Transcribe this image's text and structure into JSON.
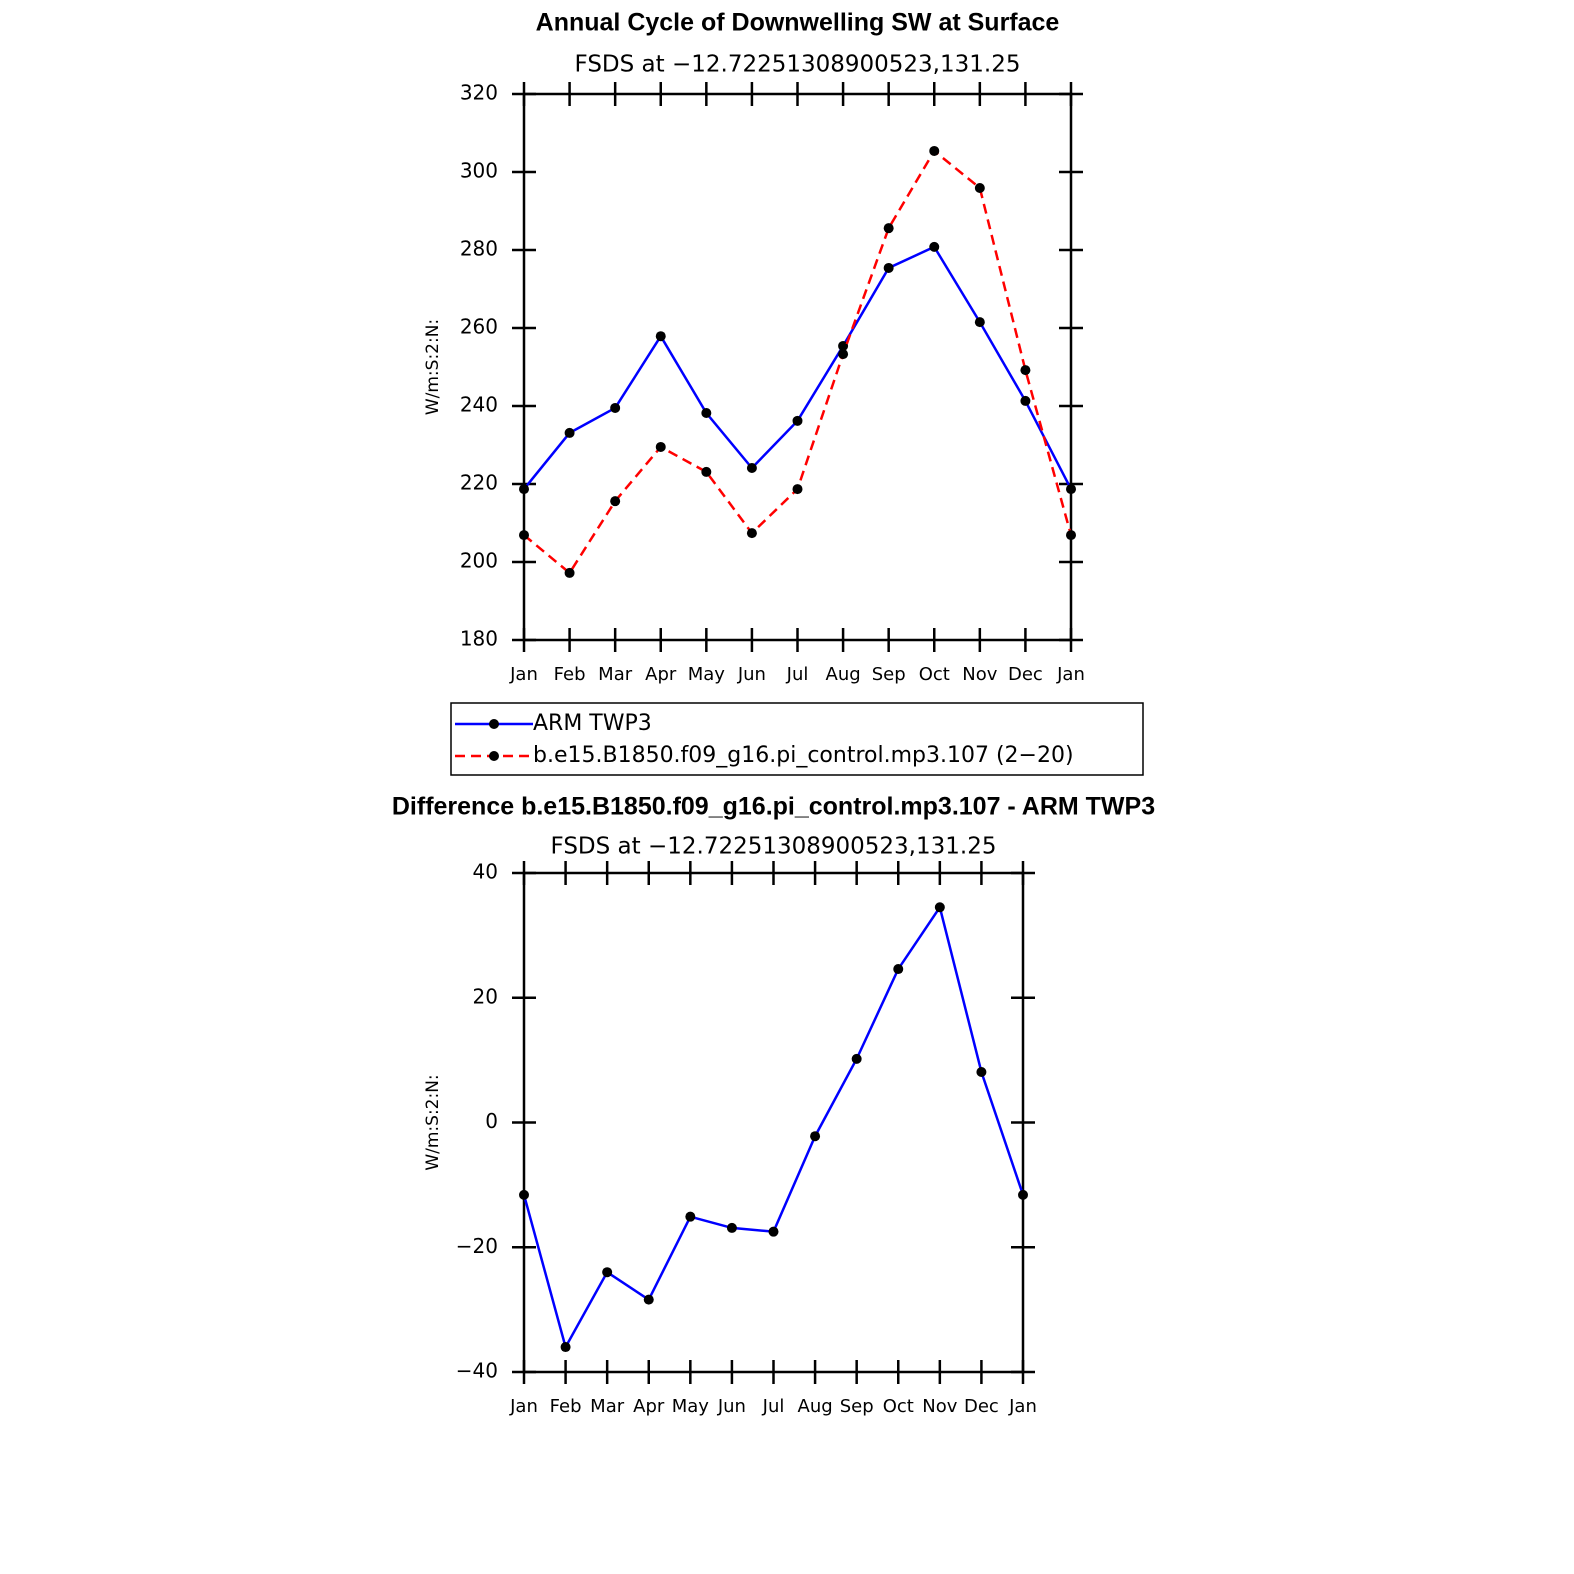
{
  "chart_data": [
    {
      "type": "line",
      "title": "Annual Cycle of Downwelling SW at Surface",
      "subtitle": "FSDS at −12.72251308900523,131.25",
      "y_label": "W/m:S:2:N:",
      "categories": [
        "Jan",
        "Feb",
        "Mar",
        "Apr",
        "May",
        "Jun",
        "Jul",
        "Aug",
        "Sep",
        "Oct",
        "Nov",
        "Dec",
        "Jan"
      ],
      "series": [
        {
          "name": "ARM TWP3",
          "color": "#0000ff",
          "dash": false,
          "values": [
            218.7,
            233.1,
            239.5,
            257.9,
            238.2,
            224.1,
            236.2,
            255.4,
            275.4,
            280.8,
            261.5,
            241.3,
            218.7
          ]
        },
        {
          "name": "b.e15.B1850.f09_g16.pi_control.mp3.107 (2−20)",
          "color": "#ff0000",
          "dash": true,
          "values": [
            206.9,
            197.2,
            215.6,
            229.5,
            223.1,
            207.4,
            218.7,
            253.3,
            285.6,
            305.4,
            295.9,
            249.2,
            206.9
          ]
        }
      ],
      "ylim": [
        180,
        320
      ],
      "yticks": [
        180,
        200,
        220,
        240,
        260,
        280,
        300,
        320
      ],
      "legend": "bottom"
    },
    {
      "type": "line",
      "title": "Difference b.e15.B1850.f09_g16.pi_control.mp3.107 - ARM TWP3",
      "subtitle": "FSDS at −12.72251308900523,131.25",
      "y_label": "W/m:S:2:N:",
      "categories": [
        "Jan",
        "Feb",
        "Mar",
        "Apr",
        "May",
        "Jun",
        "Jul",
        "Aug",
        "Sep",
        "Oct",
        "Nov",
        "Dec",
        "Jan"
      ],
      "series": [
        {
          "color": "#0000ff",
          "dash": false,
          "values": [
            -11.6,
            -36.0,
            -24.0,
            -28.4,
            -15.1,
            -16.9,
            -17.5,
            -2.2,
            10.2,
            24.6,
            34.5,
            8.1,
            -11.6
          ]
        }
      ],
      "ylim": [
        -40,
        40
      ],
      "yticks": [
        {
          "value": -40,
          "label": "−40"
        },
        {
          "value": -20,
          "label": "−20"
        },
        0,
        20,
        40
      ]
    }
  ]
}
